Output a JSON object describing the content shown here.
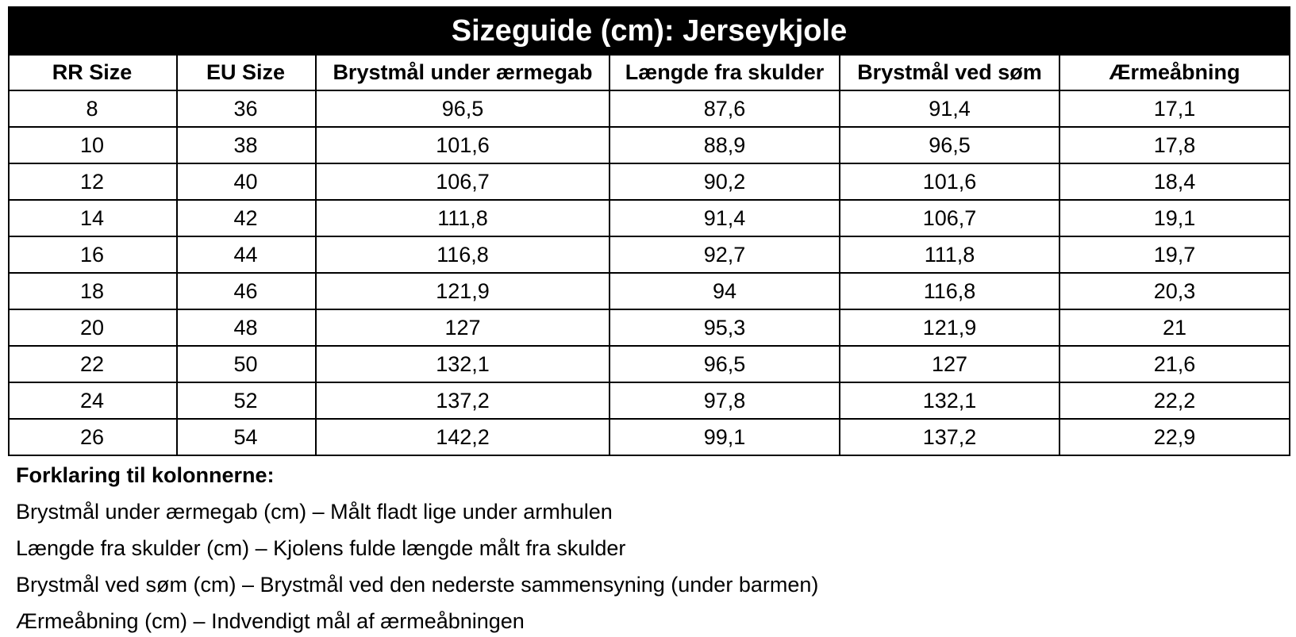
{
  "title": "Sizeguide (cm): Jerseykjole",
  "table": {
    "columns": [
      "RR Size",
      "EU Size",
      "Brystmål under ærmegab",
      "Længde fra skulder",
      "Brystmål ved søm",
      "Ærmeåbning"
    ],
    "rows": [
      [
        "8",
        "36",
        "96,5",
        "87,6",
        "91,4",
        "17,1"
      ],
      [
        "10",
        "38",
        "101,6",
        "88,9",
        "96,5",
        "17,8"
      ],
      [
        "12",
        "40",
        "106,7",
        "90,2",
        "101,6",
        "18,4"
      ],
      [
        "14",
        "42",
        "111,8",
        "91,4",
        "106,7",
        "19,1"
      ],
      [
        "16",
        "44",
        "116,8",
        "92,7",
        "111,8",
        "19,7"
      ],
      [
        "18",
        "46",
        "121,9",
        "94",
        "116,8",
        "20,3"
      ],
      [
        "20",
        "48",
        "127",
        "95,3",
        "121,9",
        "21"
      ],
      [
        "22",
        "50",
        "132,1",
        "96,5",
        "127",
        "21,6"
      ],
      [
        "24",
        "52",
        "137,2",
        "97,8",
        "132,1",
        "22,2"
      ],
      [
        "26",
        "54",
        "142,2",
        "99,1",
        "137,2",
        "22,9"
      ]
    ]
  },
  "notes": {
    "heading": "Forklaring til kolonnerne:",
    "lines": [
      "Brystmål under ærmegab (cm) – Målt fladt lige under armhulen",
      "Længde fra skulder (cm) – Kjolens fulde længde målt fra skulder",
      "Brystmål ved søm (cm) – Brystmål ved den nederste sammensyning (under barmen)",
      "Ærmeåbning (cm) – Indvendigt mål af ærmeåbningen"
    ]
  }
}
